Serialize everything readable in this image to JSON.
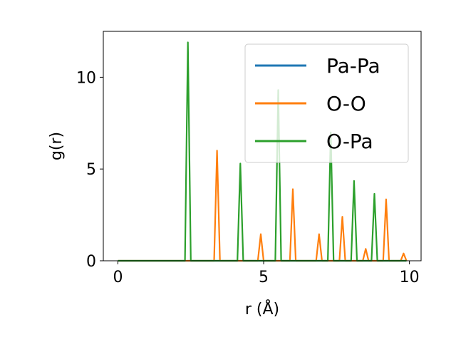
{
  "chart_data": {
    "type": "line",
    "title": "",
    "xlabel": "r (Å)",
    "ylabel": "g(r)",
    "xlim": [
      -0.5,
      10.4
    ],
    "ylim": [
      0,
      12.5
    ],
    "xticks": [
      0,
      5,
      10
    ],
    "yticks": [
      0,
      5,
      10
    ],
    "grid": false,
    "legend_position": "top-right",
    "series": [
      {
        "name": "Pa-Pa",
        "color": "#1f77b4",
        "peaks": []
      },
      {
        "name": "O-O",
        "color": "#ff7f0e",
        "peaks": [
          [
            3.4,
            6.0
          ],
          [
            4.9,
            1.45
          ],
          [
            6.0,
            3.9
          ],
          [
            6.9,
            1.45
          ],
          [
            7.7,
            2.4
          ],
          [
            8.5,
            0.65
          ],
          [
            9.2,
            3.35
          ],
          [
            9.8,
            0.4
          ]
        ]
      },
      {
        "name": "O-Pa",
        "color": "#2ca02c",
        "peaks": [
          [
            2.4,
            11.9
          ],
          [
            4.2,
            5.3
          ],
          [
            5.5,
            9.3
          ],
          [
            7.3,
            7.0
          ],
          [
            8.1,
            4.35
          ],
          [
            8.8,
            3.65
          ]
        ]
      }
    ]
  }
}
